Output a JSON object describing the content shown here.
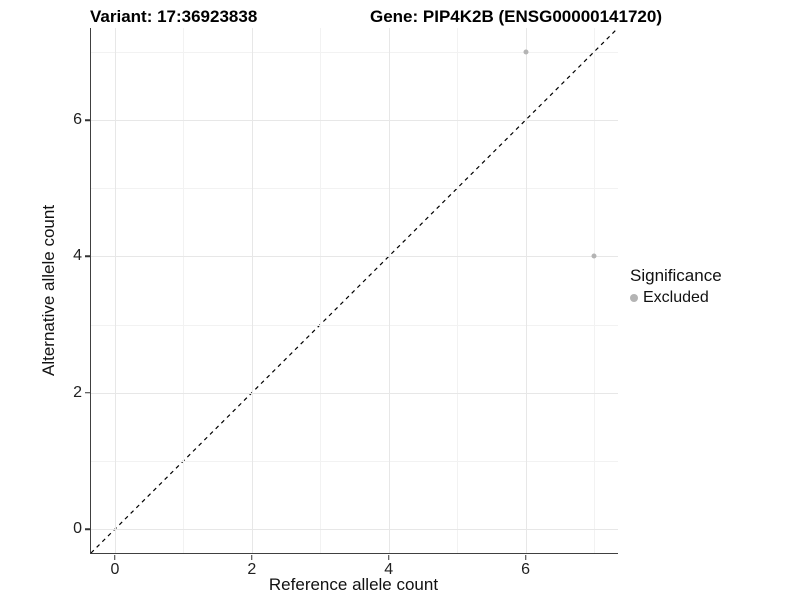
{
  "chart_data": {
    "type": "scatter",
    "titles": {
      "left": "Variant: 17:36923838",
      "right": "Gene: PIP4K2B (ENSG00000141720)"
    },
    "xlabel": "Reference allele count",
    "ylabel": "Alternative allele count",
    "xlim": [
      -0.35,
      7.35
    ],
    "ylim": [
      -0.35,
      7.35
    ],
    "x_ticks": {
      "breaks": [
        0,
        2,
        4,
        6
      ],
      "labels": [
        "0",
        "2",
        "4",
        "6"
      ]
    },
    "y_ticks": {
      "breaks": [
        0,
        2,
        4,
        6
      ],
      "labels": [
        "0",
        "2",
        "4",
        "6"
      ]
    },
    "minor_breaks_x": [
      1,
      3,
      5,
      7
    ],
    "minor_breaks_y": [
      1,
      3,
      5,
      7
    ],
    "grid": "on",
    "series": [
      {
        "name": "Excluded",
        "points": [
          {
            "x": 6,
            "y": 7
          },
          {
            "x": 7,
            "y": 4
          }
        ]
      }
    ],
    "abline": {
      "slope": 1,
      "intercept": 0,
      "style": "dashed",
      "color": "#000000",
      "width": 1.2
    },
    "legend": {
      "title": "Significance",
      "position": "right",
      "items": [
        {
          "label": "Excluded",
          "color": "#b4b4b4"
        }
      ]
    },
    "colors": {
      "point": "#b4b4b4",
      "grid_major": "#e7e7e7",
      "grid_minor": "#f2f2f2",
      "axis_line": "#404040",
      "tick_text": "#212121"
    }
  }
}
